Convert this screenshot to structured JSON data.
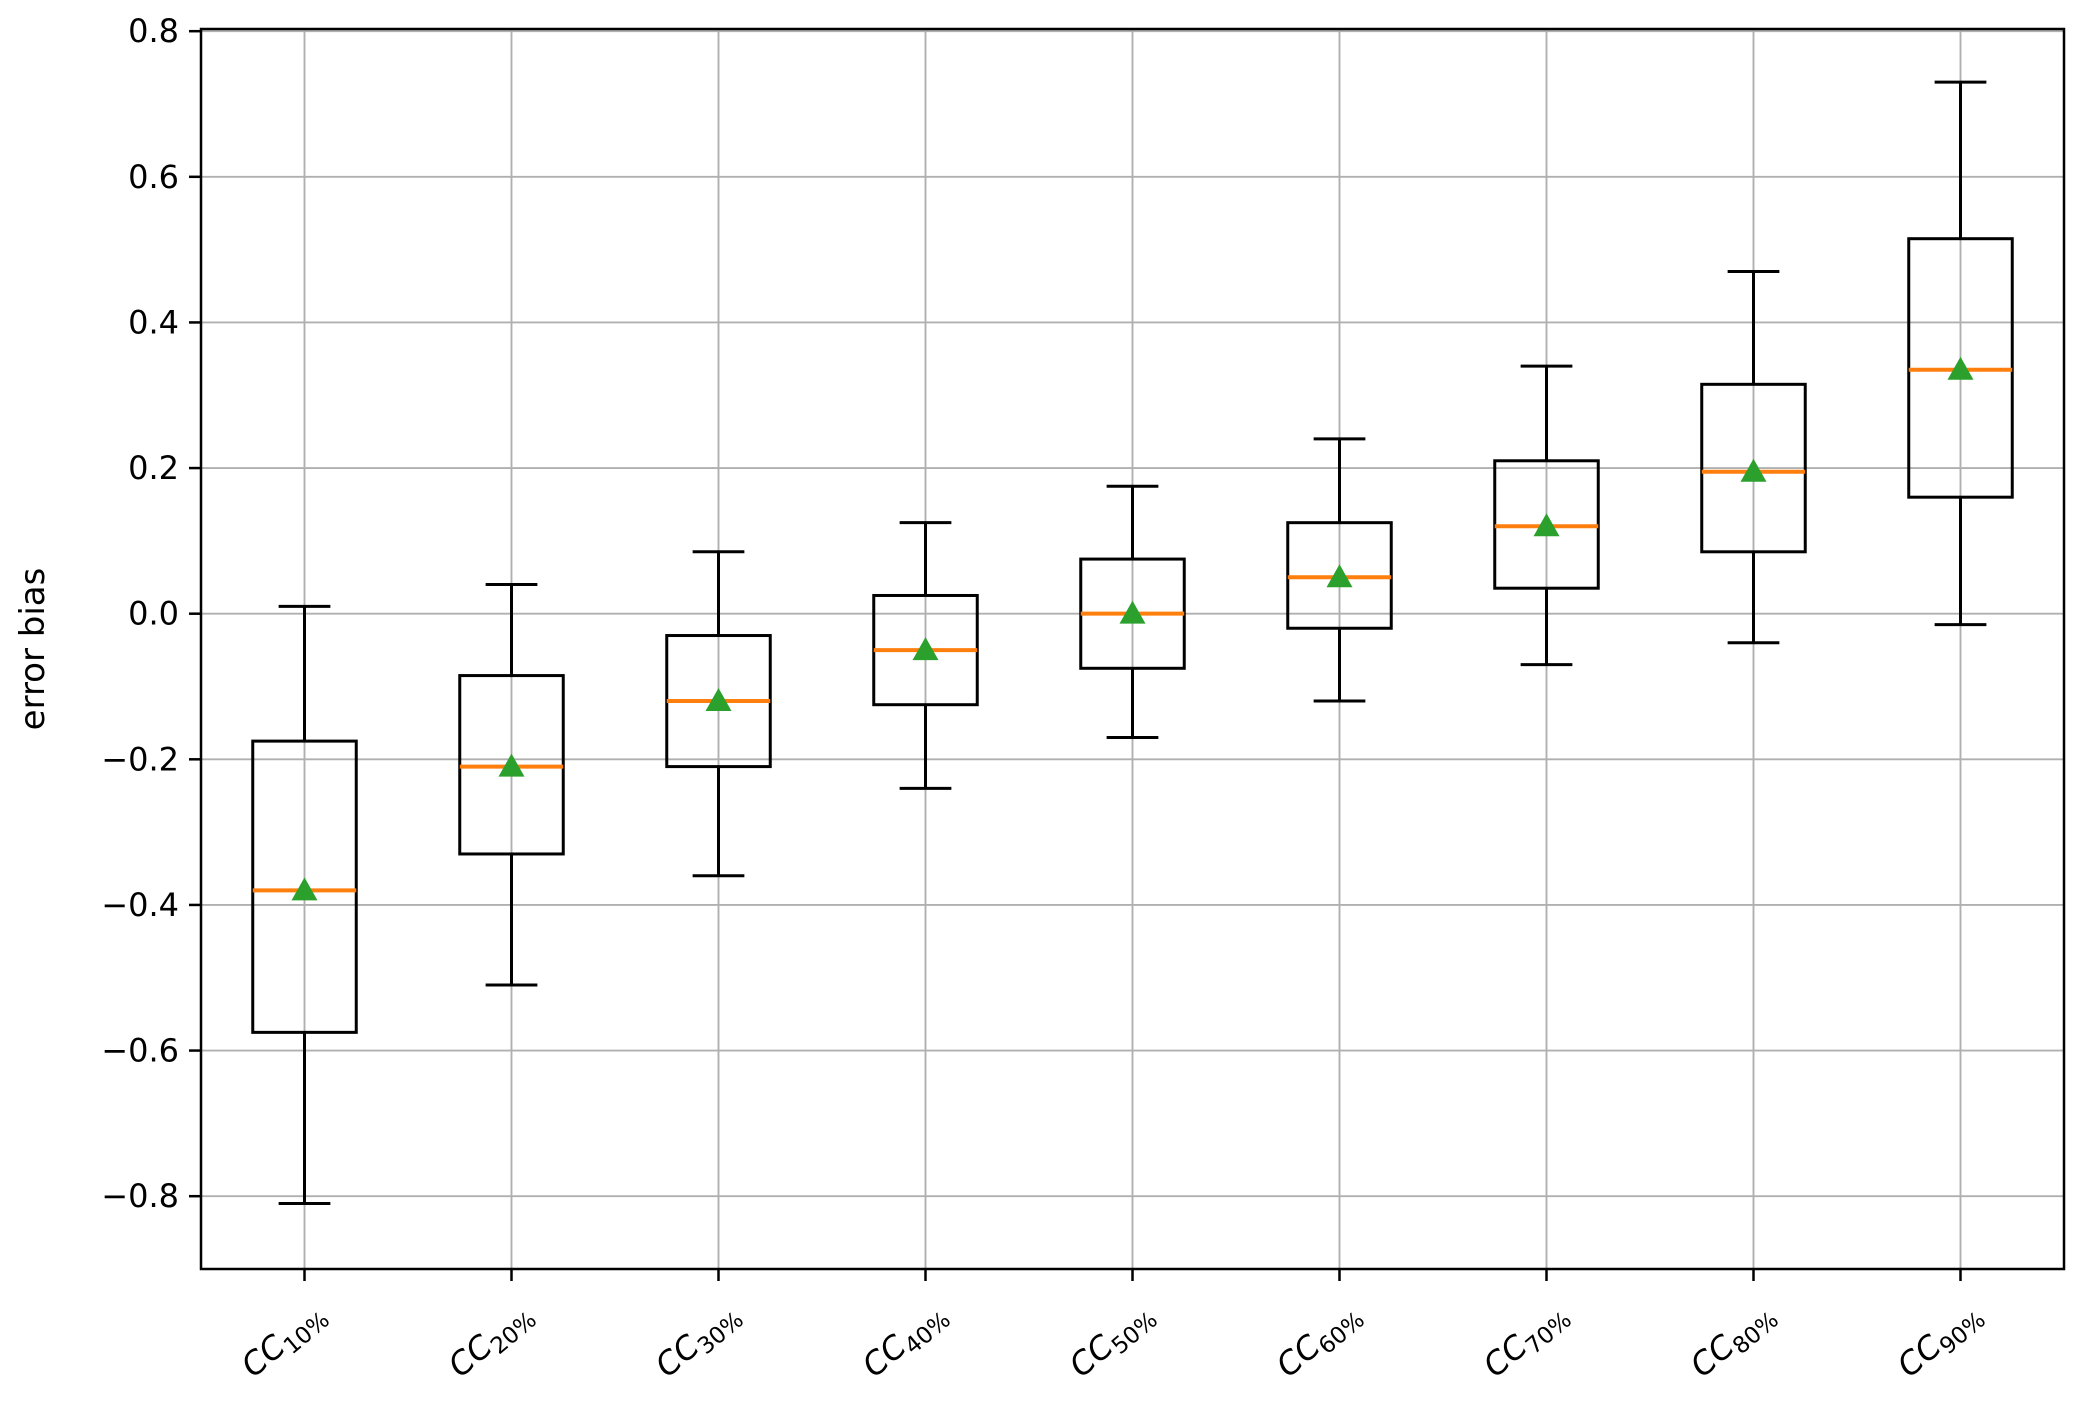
{
  "figure": {
    "background": "#ffffff"
  },
  "chart_data": {
    "type": "boxplot",
    "title": "",
    "xlabel": "",
    "ylabel": "error bias",
    "ylim": [
      -0.9,
      0.803
    ],
    "grid": true,
    "grid_color": "#b0b0b0",
    "spine_color": "#000000",
    "box_color": "#000000",
    "median_color": "#ff7f0e",
    "mean_marker": "triangle-up",
    "mean_marker_color": "#2ca02c",
    "yticks": [
      {
        "value": 0.8,
        "label": "0.8"
      },
      {
        "value": 0.6,
        "label": "0.6"
      },
      {
        "value": 0.4,
        "label": "0.4"
      },
      {
        "value": 0.2,
        "label": "0.2"
      },
      {
        "value": 0.0,
        "label": "0.0"
      },
      {
        "value": -0.2,
        "label": "−0.2"
      },
      {
        "value": -0.4,
        "label": "−0.4"
      },
      {
        "value": -0.6,
        "label": "−0.6"
      },
      {
        "value": -0.8,
        "label": "−0.8"
      }
    ],
    "categories": [
      "CC10%",
      "CC20%",
      "CC30%",
      "CC40%",
      "CC50%",
      "CC60%",
      "CC70%",
      "CC80%",
      "CC90%"
    ],
    "boxes": [
      {
        "label_prefix": "CC",
        "label_subscript": "10%",
        "whisker_low": -0.81,
        "q1": -0.575,
        "median": -0.38,
        "mean": -0.38,
        "q3": -0.175,
        "whisker_high": 0.01
      },
      {
        "label_prefix": "CC",
        "label_subscript": "20%",
        "whisker_low": -0.51,
        "q1": -0.33,
        "median": -0.21,
        "mean": -0.21,
        "q3": -0.085,
        "whisker_high": 0.04
      },
      {
        "label_prefix": "CC",
        "label_subscript": "30%",
        "whisker_low": -0.36,
        "q1": -0.21,
        "median": -0.12,
        "mean": -0.12,
        "q3": -0.03,
        "whisker_high": 0.085
      },
      {
        "label_prefix": "CC",
        "label_subscript": "40%",
        "whisker_low": -0.24,
        "q1": -0.125,
        "median": -0.05,
        "mean": -0.05,
        "q3": 0.025,
        "whisker_high": 0.125
      },
      {
        "label_prefix": "CC",
        "label_subscript": "50%",
        "whisker_low": -0.17,
        "q1": -0.075,
        "median": 0.0,
        "mean": 0.0,
        "q3": 0.075,
        "whisker_high": 0.175
      },
      {
        "label_prefix": "CC",
        "label_subscript": "60%",
        "whisker_low": -0.12,
        "q1": -0.02,
        "median": 0.05,
        "mean": 0.05,
        "q3": 0.125,
        "whisker_high": 0.24
      },
      {
        "label_prefix": "CC",
        "label_subscript": "70%",
        "whisker_low": -0.07,
        "q1": 0.035,
        "median": 0.12,
        "mean": 0.12,
        "q3": 0.21,
        "whisker_high": 0.34
      },
      {
        "label_prefix": "CC",
        "label_subscript": "80%",
        "whisker_low": -0.04,
        "q1": 0.085,
        "median": 0.195,
        "mean": 0.195,
        "q3": 0.315,
        "whisker_high": 0.47
      },
      {
        "label_prefix": "CC",
        "label_subscript": "90%",
        "whisker_low": -0.015,
        "q1": 0.16,
        "median": 0.335,
        "mean": 0.335,
        "q3": 0.515,
        "whisker_high": 0.73
      }
    ]
  }
}
